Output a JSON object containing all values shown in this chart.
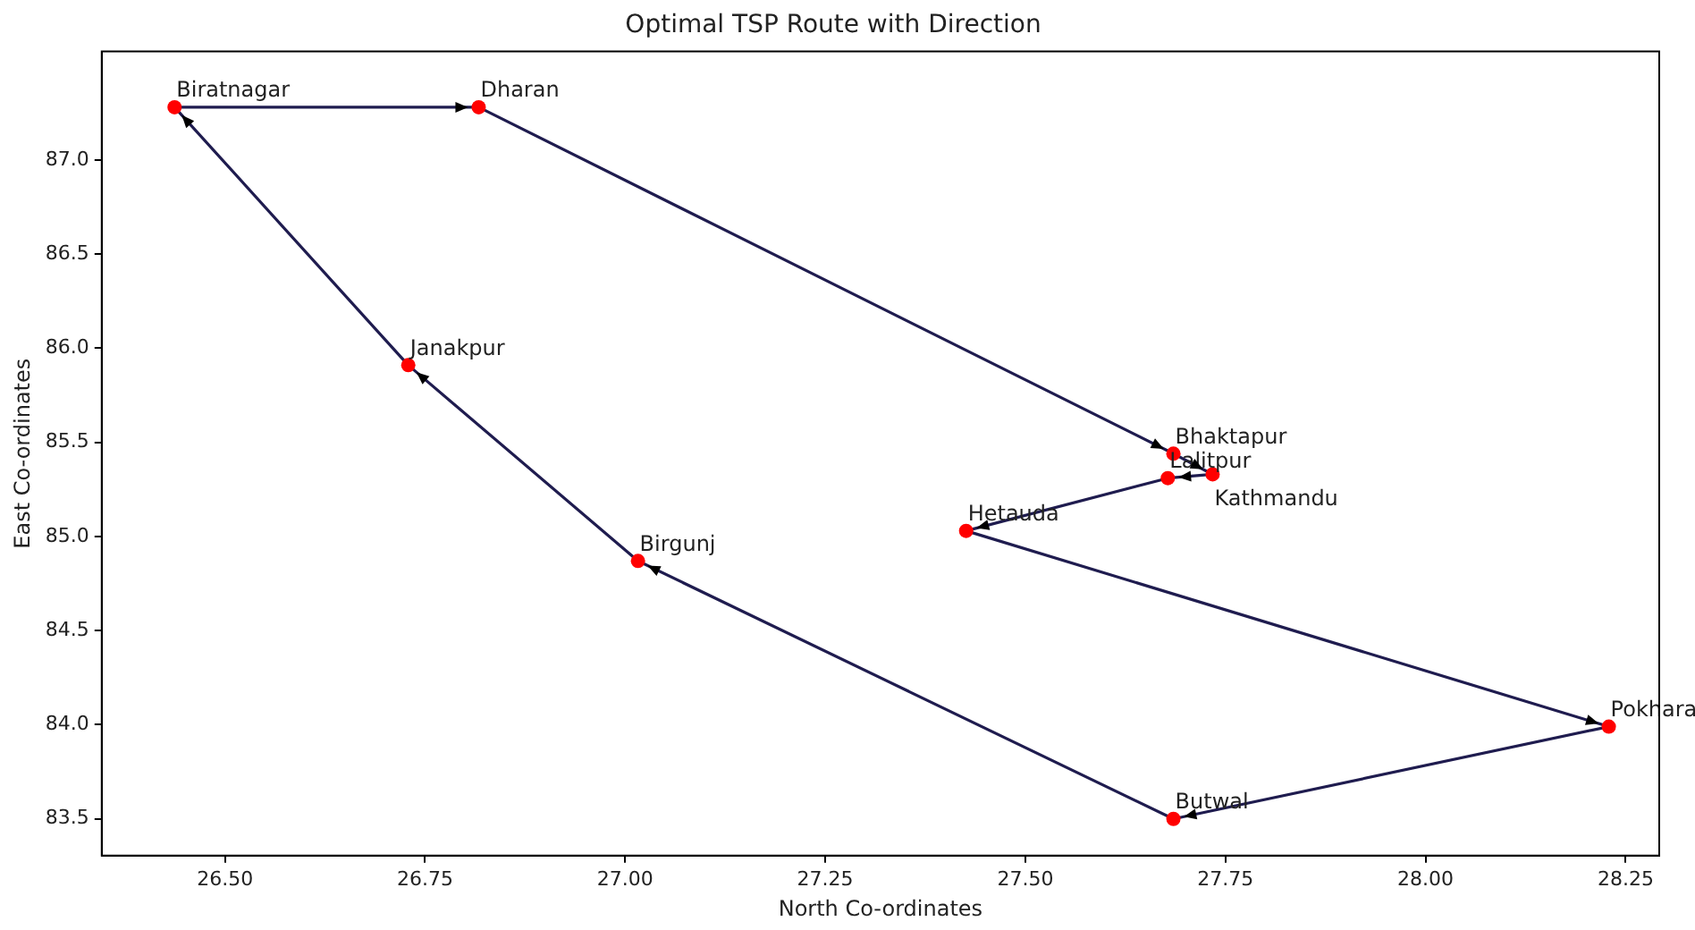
{
  "chart_data": {
    "type": "scatter",
    "title": "Optimal TSP Route with Direction",
    "xlabel": "North Co-ordinates",
    "ylabel": "East Co-ordinates",
    "xlim": [
      26.346,
      28.292
    ],
    "ylim": [
      83.305,
      87.576
    ],
    "xticks": [
      {
        "value": 26.5,
        "label": "26.50"
      },
      {
        "value": 26.75,
        "label": "26.75"
      },
      {
        "value": 27,
        "label": "27.00"
      },
      {
        "value": 27.25,
        "label": "27.25"
      },
      {
        "value": 27.5,
        "label": "27.50"
      },
      {
        "value": 27.75,
        "label": "27.75"
      },
      {
        "value": 28,
        "label": "28.00"
      },
      {
        "value": 28.25,
        "label": "28.25"
      }
    ],
    "yticks": [
      {
        "value": 83.5,
        "label": "83.5"
      },
      {
        "value": 84,
        "label": "84.0"
      },
      {
        "value": 84.5,
        "label": "84.5"
      },
      {
        "value": 85,
        "label": "85.0"
      },
      {
        "value": 85.5,
        "label": "85.5"
      },
      {
        "value": 86,
        "label": "86.0"
      },
      {
        "value": 86.5,
        "label": "86.5"
      },
      {
        "value": 87,
        "label": "87.0"
      }
    ],
    "grid": false,
    "legend": false,
    "series": [
      {
        "type": "line",
        "color": "#1f1c4f",
        "marker": "none",
        "x": [
          26.437,
          26.817
        ],
        "values": [
          87.28,
          87.28
        ]
      },
      {
        "type": "line",
        "color": "#1f1c4f",
        "marker": "none",
        "x": [
          26.817,
          27.685
        ],
        "values": [
          87.28,
          85.44
        ]
      },
      {
        "type": "line",
        "color": "#1f1c4f",
        "marker": "none",
        "x": [
          27.685,
          27.734
        ],
        "values": [
          85.44,
          85.33
        ]
      },
      {
        "type": "line",
        "color": "#1f1c4f",
        "marker": "none",
        "x": [
          27.734,
          27.678
        ],
        "values": [
          85.33,
          85.31
        ]
      },
      {
        "type": "line",
        "color": "#1f1c4f",
        "marker": "none",
        "x": [
          27.678,
          27.426
        ],
        "values": [
          85.31,
          85.03
        ]
      },
      {
        "type": "line",
        "color": "#1f1c4f",
        "marker": "none",
        "x": [
          27.426,
          28.229
        ],
        "values": [
          85.03,
          83.99
        ]
      },
      {
        "type": "line",
        "color": "#1f1c4f",
        "marker": "none",
        "x": [
          28.229,
          27.685
        ],
        "values": [
          83.99,
          83.5
        ]
      },
      {
        "type": "line",
        "color": "#1f1c4f",
        "marker": "none",
        "x": [
          27.685,
          27.016
        ],
        "values": [
          83.5,
          84.87
        ]
      },
      {
        "type": "line",
        "color": "#1f1c4f",
        "marker": "none",
        "x": [
          27.016,
          26.729
        ],
        "values": [
          84.87,
          85.91
        ]
      },
      {
        "type": "line",
        "color": "#1f1c4f",
        "marker": "none",
        "x": [
          26.729,
          26.437
        ],
        "values": [
          85.91,
          87.28
        ]
      },
      {
        "type": "scatter",
        "color": "#ff0000",
        "marker": "circle",
        "x": [
          26.437,
          26.817,
          27.685,
          27.734,
          27.678,
          27.426,
          28.229,
          27.685,
          27.016,
          26.729
        ],
        "values": [
          87.28,
          87.28,
          85.44,
          85.33,
          85.31,
          85.03,
          83.99,
          83.5,
          84.87,
          85.91
        ]
      }
    ],
    "annotations": [
      {
        "text": "Biratnagar",
        "x": 26.437,
        "y": 87.28
      },
      {
        "text": "Dharan",
        "x": 26.817,
        "y": 87.28
      },
      {
        "text": "Bhaktapur",
        "x": 27.685,
        "y": 85.44
      },
      {
        "text": "Kathmandu",
        "x": 27.734,
        "y": 85.33
      },
      {
        "text": "Lalitpur",
        "x": 27.678,
        "y": 85.31
      },
      {
        "text": "Hetauda",
        "x": 27.426,
        "y": 85.03
      },
      {
        "text": "Pokhara",
        "x": 28.229,
        "y": 83.99
      },
      {
        "text": "Butwal",
        "x": 27.685,
        "y": 83.5
      },
      {
        "text": "Birgunj",
        "x": 27.016,
        "y": 84.87
      },
      {
        "text": "Janakpur",
        "x": 26.729,
        "y": 85.91
      }
    ]
  }
}
